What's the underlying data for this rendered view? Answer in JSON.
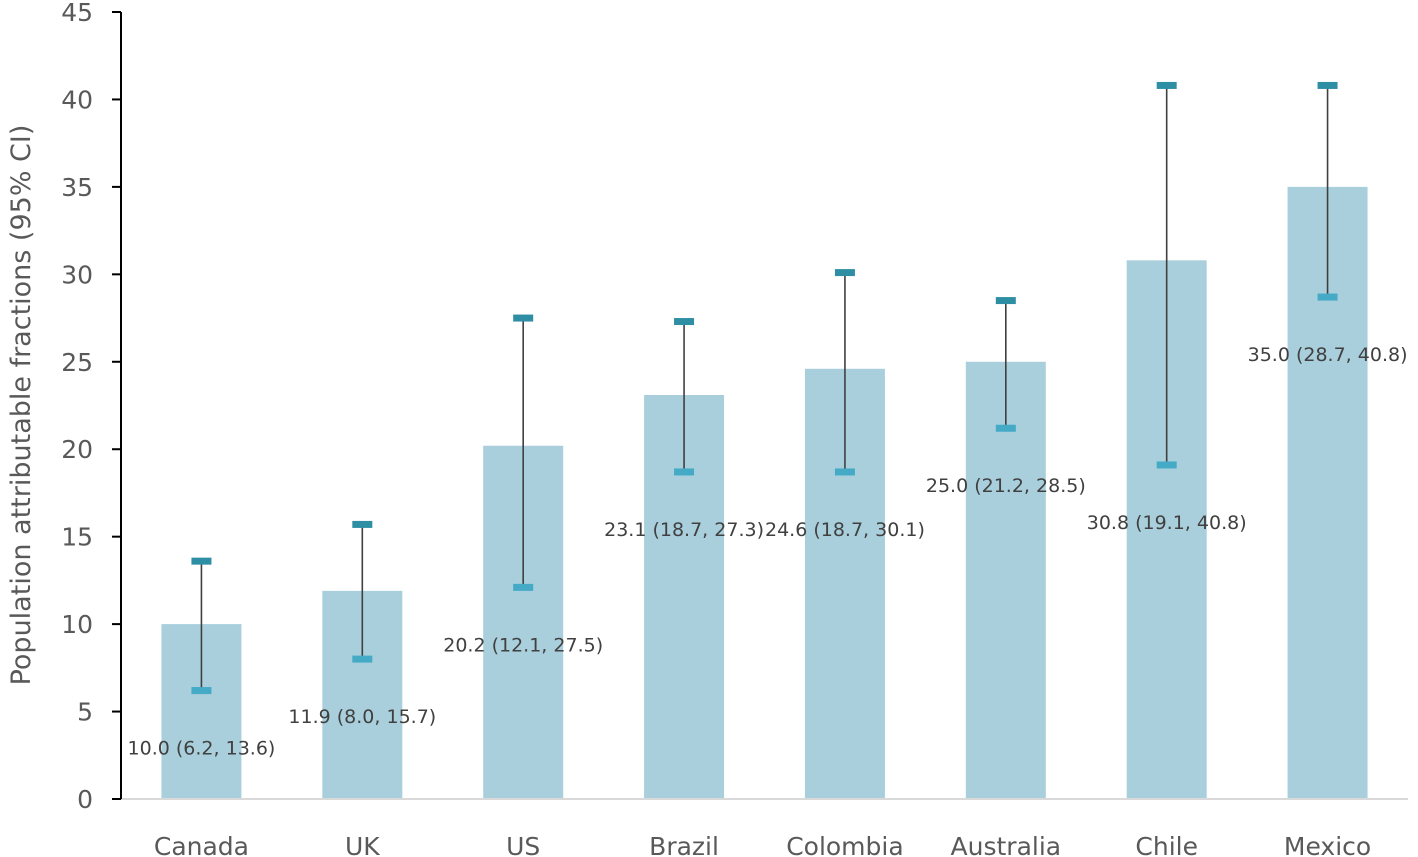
{
  "chart_data": {
    "type": "bar",
    "title": "",
    "xlabel": "",
    "ylabel": "Population attributable fractions (95% CI)",
    "ylim": [
      0,
      45
    ],
    "yticks": [
      0,
      5,
      10,
      15,
      20,
      25,
      30,
      35,
      40,
      45
    ],
    "grid": false,
    "legend": "none",
    "categories": [
      "Canada",
      "UK",
      "US",
      "Brazil",
      "Colombia",
      "Australia",
      "Chile",
      "Mexico"
    ],
    "values": [
      10.0,
      11.9,
      20.2,
      23.1,
      24.6,
      25.0,
      30.8,
      35.0
    ],
    "ci_low": [
      6.2,
      8.0,
      12.1,
      18.7,
      18.7,
      21.2,
      19.1,
      28.7
    ],
    "ci_high": [
      13.6,
      15.7,
      27.5,
      27.3,
      30.1,
      28.5,
      40.8,
      40.8
    ],
    "data_labels": [
      "10.0 (6.2, 13.6)",
      "11.9 (8.0, 15.7)",
      "20.2 (12.1, 27.5)",
      "23.1 (18.7, 27.3)",
      "24.6 (18.7, 30.1)",
      "25.0 (21.2, 28.5)",
      "30.8 (19.1, 40.8)",
      "35.0 (28.7, 40.8)"
    ],
    "colors": {
      "bar": "#a9cfdc",
      "error_line": "#404040",
      "cap_high": "#2e8ea3",
      "cap_low": "#44aac6",
      "axis": "#000000",
      "baseline": "#d9d9d9"
    }
  }
}
